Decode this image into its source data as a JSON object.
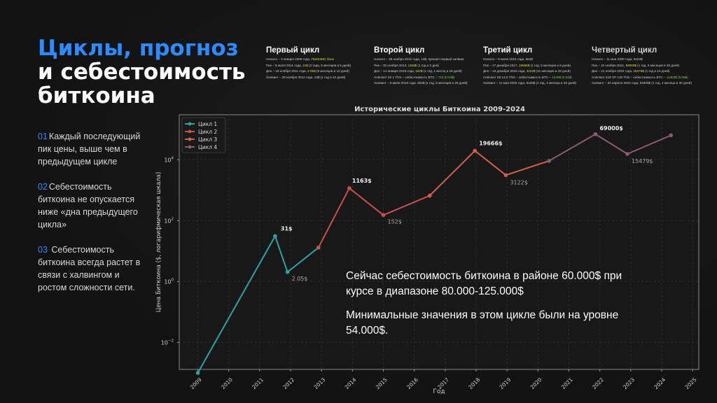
{
  "title": {
    "accent": "Циклы, прогноз",
    "rest": "и себестоимость биткоина"
  },
  "points": [
    {
      "num": "01",
      "text": "Каждый последующий пик цены, выше чем в предыдущем цикле"
    },
    {
      "num": "02",
      "text": "Себестоимость биткоина не опускается ниже «дна предыдущего цикла»"
    },
    {
      "num": "03",
      "text": " Себестоимость биткоина всегда растет в связи с халвингом и ростом сложности сети."
    }
  ],
  "cycles": [
    {
      "heading": "Первый цикл",
      "lines": [
        {
          "pre": "Начало – 3 января 2009 года, ",
          "hl": "ГЕНЕЗИС блок",
          "post": ""
        },
        {
          "pre": "Пик – 8 июля 2011 года, ",
          "hl": "31$",
          "post": " (2 года, 5 месяцев и 5 дней)"
        },
        {
          "pre": "Дно – 18 ноября 2011 года, ",
          "hl": "2.05$",
          "post": " (5 месяцев и 10 дней)"
        },
        {
          "pre": "Халвинг – 28 ноября 2012 года, 13$ (1 год и 10 дней)",
          "hl": "",
          "post": ""
        }
      ]
    },
    {
      "heading": "Второй цикл",
      "lines": [
        {
          "pre": "Начало – 28 ноября 2012 года, 13$, прошел первый халвинг",
          "hl": "",
          "post": ""
        },
        {
          "pre": "Пик – 30 ноября 2013, ",
          "hl": "1163$",
          "post": " (1 год и 2 дня)"
        },
        {
          "pre": "Дно – 14 января 2015 года, ",
          "hl": "152$",
          "post": " (1 год, 1 месяц и 15 дней)"
        },
        {
          "pre": "Antminer S2 1 Th/s – себестоимость BTC – ",
          "hl": "715 (0.03$)",
          "post": ""
        },
        {
          "pre": "Халвинг – 9 июля 2016 года, 664$ (1 год, 5 месяцев и 25 дней)",
          "hl": "",
          "post": ""
        }
      ]
    },
    {
      "heading": "Третий цикл",
      "lines": [
        {
          "pre": "Начало – 9 июля 2016 года, 664$",
          "hl": "",
          "post": ""
        },
        {
          "pre": "Пик – 17 декабря 2017, ",
          "hl": "19666$",
          "post": " (1 год, 5 месяцев и 8 дней)"
        },
        {
          "pre": "Дно – 15 декабря 2018 года, ",
          "hl": "3122$",
          "post": " (11 месяцев и 28 дней)"
        },
        {
          "pre": "Antminer S9 13,5 Th/s – себестоимость BTC – ",
          "hl": "1240$ (0.04$)",
          "post": ""
        },
        {
          "pre": "Халвинг – 11 мая 2020 года, 9183$ (1 год, 4 месяца и 26 дней)",
          "hl": "",
          "post": ""
        }
      ]
    },
    {
      "heading": "Четвертый цикл",
      "lines": [
        {
          "pre": "Начало – 11 мая 2020 года, 9183$",
          "hl": "",
          "post": ""
        },
        {
          "pre": "Пик – 10 ноября 2021, ",
          "hl": "69000$",
          "post": " (1 год, 5 месяцев и 30 дней)"
        },
        {
          "pre": "Дно – 21 ноября 2022 года, ",
          "hl": "15479$",
          "post": " (1 год и 10 дней)"
        },
        {
          "pre": "Antminer S19 XP 140 Th/s – себестоимость BTC – ",
          "hl": "11300$ (0.05$)",
          "post": ""
        },
        {
          "pre": "Халвинг – 20 апреля 2024 года, 63400$ (1 год, 4 месяца и 30 дней)",
          "hl": "",
          "post": ""
        }
      ]
    }
  ],
  "overlay": {
    "line1": "Сейчас себестоимость биткоина в районе 60.000$ при курсе в диапазоне 80.000-125.000$",
    "line2": "Минимальные значения в этом цикле были на уровне 54.000$."
  },
  "chart_data": {
    "type": "line",
    "title": "Исторические циклы Биткоина 2009-2024",
    "xlabel": "Год",
    "ylabel": "Цена Биткоина ($, логарифмическая шкала)",
    "y_scale": "log",
    "xlim": [
      2008.4,
      2025.2
    ],
    "ylim": [
      0.0013,
      300000
    ],
    "x_ticks": [
      2009,
      2010,
      2011,
      2012,
      2013,
      2014,
      2015,
      2016,
      2017,
      2018,
      2019,
      2020,
      2021,
      2022,
      2023,
      2024,
      2025
    ],
    "y_ticks": [
      {
        "value": 0.01,
        "base": "10",
        "exp": "−2"
      },
      {
        "value": 1,
        "base": "10",
        "exp": "0"
      },
      {
        "value": 100,
        "base": "10",
        "exp": "2"
      },
      {
        "value": 10000,
        "base": "10",
        "exp": "4"
      }
    ],
    "grid": true,
    "legend": "top-left",
    "series": [
      {
        "name": "Цикл 1",
        "color": "#2aa3a3",
        "points": [
          [
            2009.0,
            0.001
          ],
          [
            2011.5,
            31
          ],
          [
            2011.9,
            2.05
          ],
          [
            2012.9,
            13
          ]
        ]
      },
      {
        "name": "Цикл 2",
        "color": "#c94f4f",
        "points": [
          [
            2012.9,
            13
          ],
          [
            2013.9,
            1163
          ],
          [
            2015.0,
            152
          ],
          [
            2016.5,
            664
          ]
        ]
      },
      {
        "name": "Цикл 3",
        "color": "#d0604a",
        "points": [
          [
            2016.5,
            664
          ],
          [
            2017.96,
            19666
          ],
          [
            2018.96,
            3122
          ],
          [
            2020.36,
            9183
          ]
        ]
      },
      {
        "name": "Цикл 4",
        "color": "#8c5a73",
        "points": [
          [
            2020.36,
            9183
          ],
          [
            2021.86,
            69000
          ],
          [
            2022.89,
            15479
          ],
          [
            2024.3,
            63400
          ]
        ]
      }
    ],
    "annotations": [
      {
        "x": 2011.5,
        "y": 31,
        "text": "31$",
        "bold": true,
        "dx": 8,
        "dy": -8
      },
      {
        "x": 2011.9,
        "y": 2.05,
        "text": "2.05$",
        "bold": false,
        "dx": 6,
        "dy": 12
      },
      {
        "x": 2013.9,
        "y": 1163,
        "text": "1163$",
        "bold": true,
        "dx": 4,
        "dy": -8
      },
      {
        "x": 2015.0,
        "y": 152,
        "text": "152$",
        "bold": false,
        "dx": 6,
        "dy": 12
      },
      {
        "x": 2017.96,
        "y": 19666,
        "text": "19666$",
        "bold": true,
        "dx": 6,
        "dy": -8
      },
      {
        "x": 2018.96,
        "y": 3122,
        "text": "3122$",
        "bold": false,
        "dx": 6,
        "dy": 13
      },
      {
        "x": 2021.86,
        "y": 69000,
        "text": "69000$",
        "bold": true,
        "dx": 6,
        "dy": -6
      },
      {
        "x": 2022.89,
        "y": 15479,
        "text": "15479$",
        "bold": false,
        "dx": 6,
        "dy": 13
      }
    ]
  }
}
